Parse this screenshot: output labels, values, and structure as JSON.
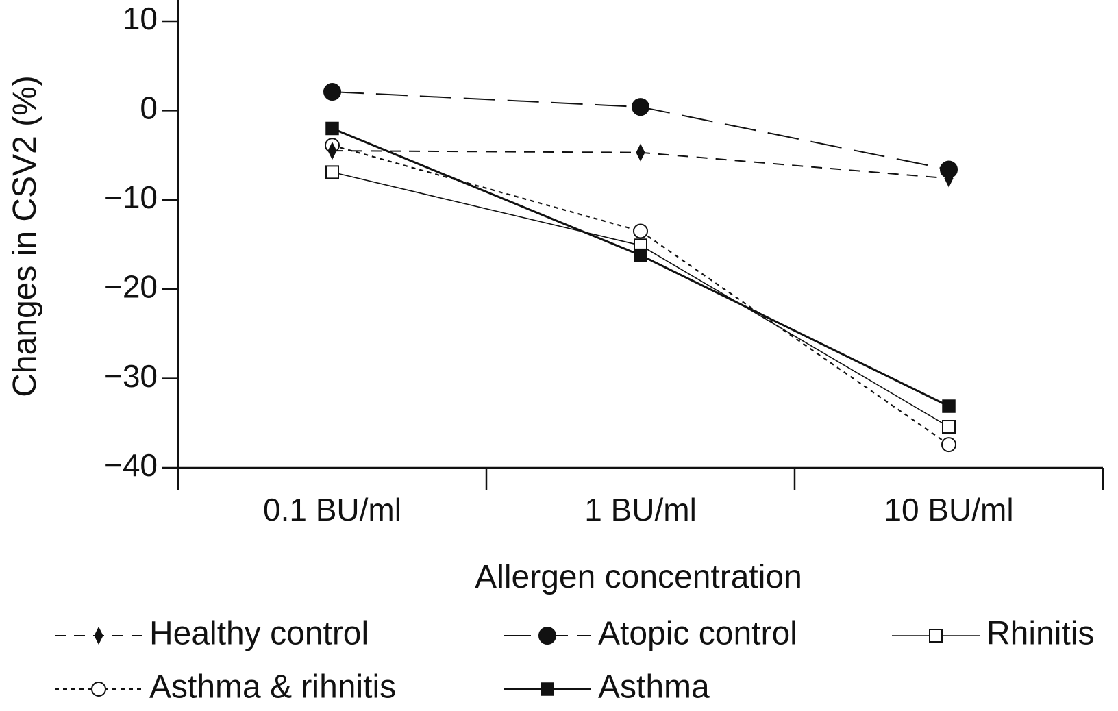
{
  "chart_data": {
    "type": "line",
    "title": "",
    "xlabel": "Allergen concentration",
    "ylabel": "Changes in CSV2 (%)",
    "categories": [
      "0.1 BU/ml",
      "1 BU/ml",
      "10 BU/ml"
    ],
    "ylim": [
      -40,
      10
    ],
    "yticks": [
      10,
      0,
      -10,
      -20,
      -30,
      -40
    ],
    "ytick_labels": [
      "10",
      "0",
      "−10",
      "−20",
      "−30",
      "−40"
    ],
    "grid": false,
    "legend_position": "bottom",
    "series": [
      {
        "name": "Healthy control",
        "values": [
          -4.5,
          -4.7,
          -7.6
        ],
        "marker": "diamond-filled",
        "line": "dashed",
        "color": "#111111"
      },
      {
        "name": "Atopic control",
        "values": [
          2.1,
          0.4,
          -6.6
        ],
        "marker": "circle-filled",
        "line": "long-dash",
        "color": "#111111"
      },
      {
        "name": "Rhinitis",
        "values": [
          -6.9,
          -15.1,
          -35.4
        ],
        "marker": "square-open",
        "line": "thin-solid",
        "color": "#111111"
      },
      {
        "name": "Asthma & rihnitis",
        "values": [
          -3.9,
          -13.5,
          -37.4
        ],
        "marker": "circle-open",
        "line": "dotted",
        "color": "#111111"
      },
      {
        "name": "Asthma",
        "values": [
          -2.0,
          -16.2,
          -33.1
        ],
        "marker": "square-filled",
        "line": "solid",
        "color": "#111111"
      }
    ]
  }
}
